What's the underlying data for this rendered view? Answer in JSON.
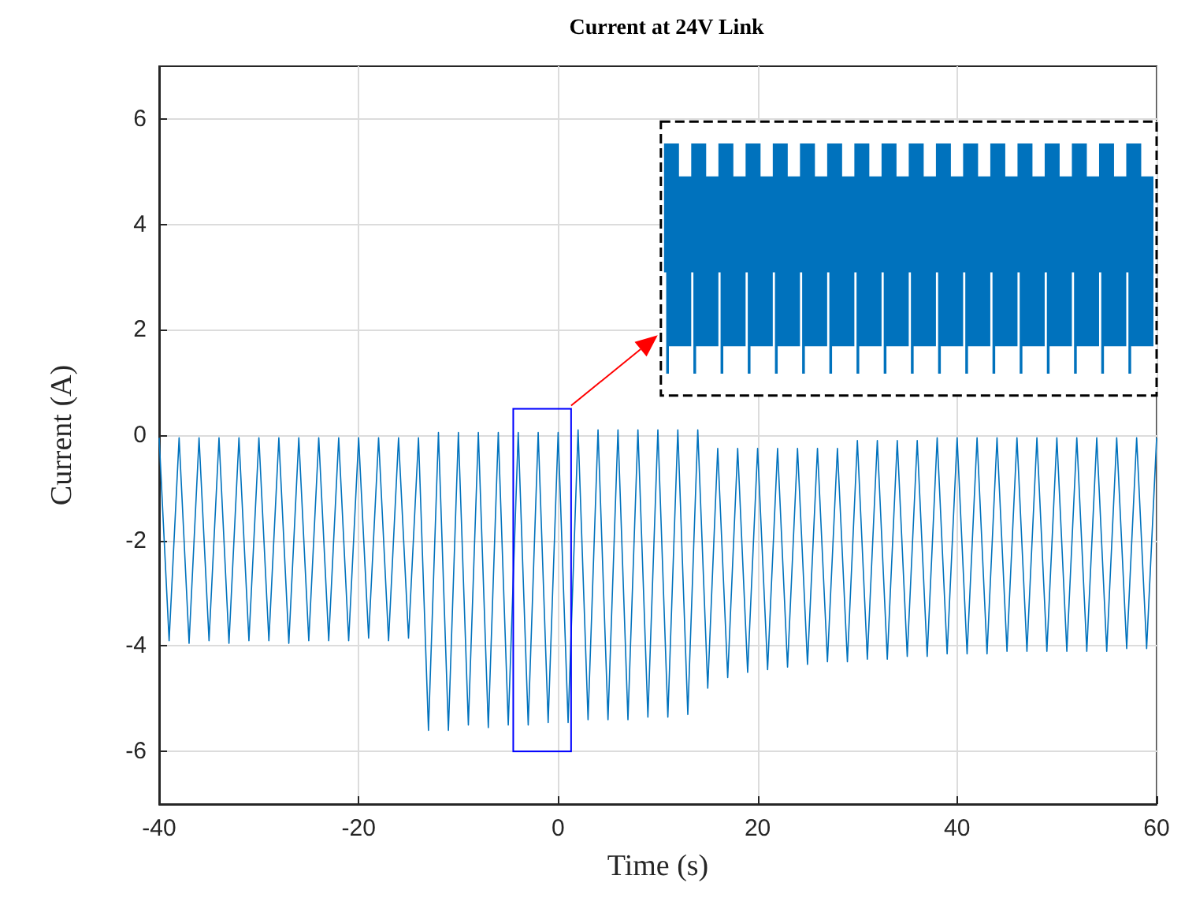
{
  "chart_data": {
    "type": "line",
    "title": "Current at 24V Link",
    "xlabel": "Time (s)",
    "ylabel": "Current (A)",
    "xlim": [
      -40,
      60
    ],
    "xticks": [
      -40,
      -20,
      0,
      20,
      40,
      60
    ],
    "ylim": [
      -7,
      7
    ],
    "yticks": [
      -6,
      -4,
      -2,
      0,
      2,
      4,
      6
    ],
    "grid": true,
    "marker": "none",
    "line_style": "solid",
    "series": [
      {
        "color": "#0072bd",
        "x": [
          -40,
          -39,
          -38,
          -37,
          -36,
          -35,
          -34,
          -33,
          -32,
          -31,
          -30,
          -29,
          -28,
          -27,
          -26,
          -25,
          -24,
          -23,
          -22,
          -21,
          -20,
          -19,
          -18,
          -17,
          -16,
          -15,
          -14,
          -13,
          -12,
          -11,
          -10,
          -9,
          -8,
          -7,
          -6,
          -5,
          -4,
          -3,
          -2,
          -1,
          0,
          1,
          2,
          3,
          4,
          5,
          6,
          7,
          8,
          9,
          10,
          11,
          12,
          13,
          14,
          15,
          16,
          17,
          18,
          19,
          20,
          21,
          22,
          23,
          24,
          25,
          26,
          27,
          28,
          29,
          30,
          31,
          32,
          33,
          34,
          35,
          36,
          37,
          38,
          39,
          40,
          41,
          42,
          43,
          44,
          45,
          46,
          47,
          48,
          49,
          50,
          51,
          52,
          53,
          54,
          55,
          56,
          57,
          58,
          59,
          60
        ],
        "values": [
          -0.05,
          -3.9,
          -0.05,
          -3.95,
          -0.05,
          -3.9,
          -0.05,
          -3.95,
          -0.05,
          -3.9,
          -0.05,
          -3.9,
          -0.05,
          -3.95,
          -0.05,
          -3.9,
          -0.05,
          -3.9,
          -0.05,
          -3.9,
          -0.05,
          -3.85,
          -0.05,
          -3.9,
          -0.05,
          -3.85,
          -0.05,
          -5.6,
          0.05,
          -5.6,
          0.05,
          -5.5,
          0.05,
          -5.55,
          0.05,
          -5.5,
          0.05,
          -5.5,
          0.05,
          -5.45,
          0.05,
          -5.45,
          0.1,
          -5.4,
          0.1,
          -5.4,
          0.1,
          -5.4,
          0.1,
          -5.35,
          0.1,
          -5.35,
          0.1,
          -5.3,
          0.1,
          -4.8,
          -0.25,
          -4.6,
          -0.25,
          -4.5,
          -0.25,
          -4.45,
          -0.25,
          -4.4,
          -0.25,
          -4.35,
          -0.25,
          -4.3,
          -0.25,
          -4.3,
          -0.1,
          -4.25,
          -0.1,
          -4.25,
          -0.1,
          -4.2,
          -0.1,
          -4.2,
          -0.05,
          -4.15,
          -0.05,
          -4.15,
          -0.05,
          -4.15,
          -0.05,
          -4.1,
          -0.05,
          -4.1,
          -0.05,
          -4.1,
          -0.05,
          -4.1,
          -0.05,
          -4.1,
          -0.05,
          -4.1,
          -0.05,
          -4.05,
          -0.05,
          -4.05,
          -0.05
        ]
      }
    ]
  }
}
